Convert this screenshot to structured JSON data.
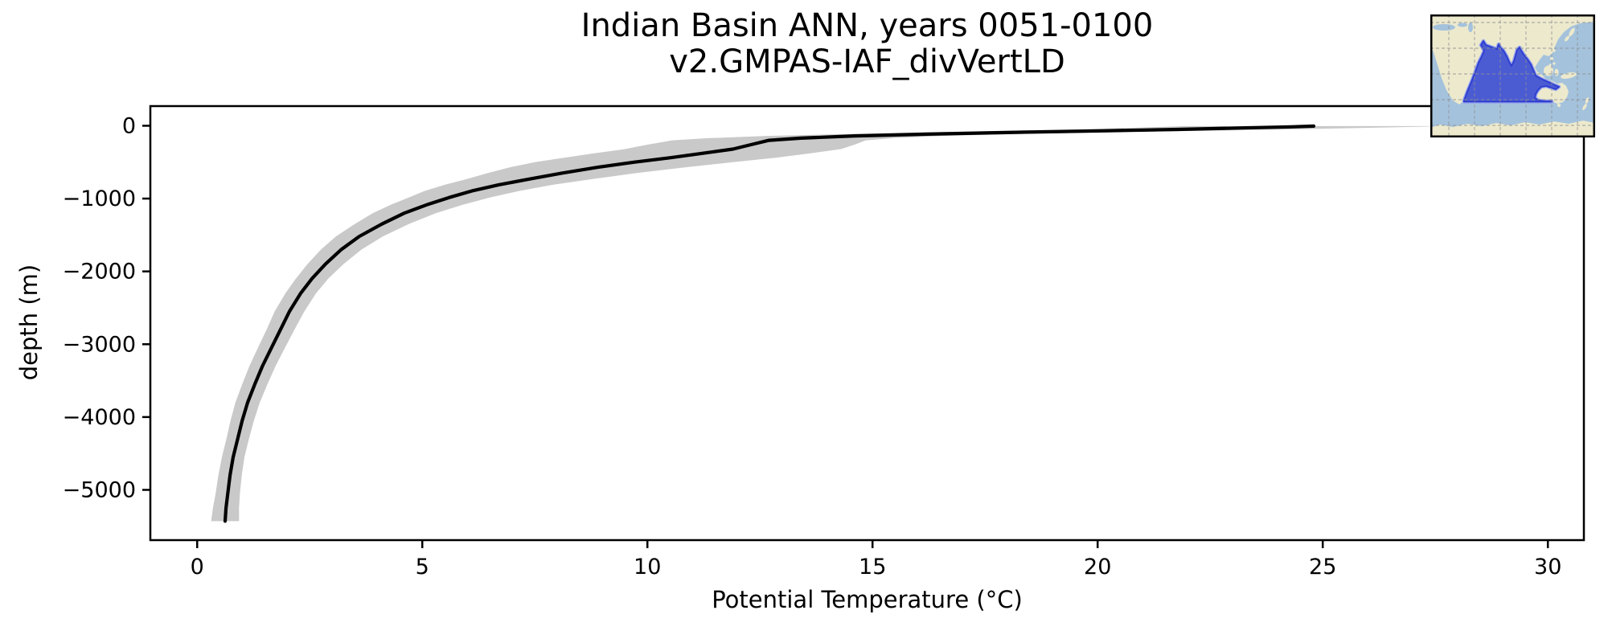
{
  "figure": {
    "background": "#ffffff",
    "frame_color": "#000000"
  },
  "chart_data": {
    "type": "line",
    "title": "Indian Basin ANN, years 0051-0100",
    "subtitle": "v2.GMPAS-IAF_divVertLD",
    "xlabel": "Potential Temperature (°C)",
    "ylabel": "depth (m)",
    "xlim": [
      -1.04,
      30.8
    ],
    "ylim": [
      -5690,
      270
    ],
    "x_ticks": [
      0,
      5,
      10,
      15,
      20,
      25,
      30
    ],
    "y_ticks": [
      0,
      -1000,
      -2000,
      -3000,
      -4000,
      -5000
    ],
    "grid": false,
    "legend": "none",
    "series": [
      {
        "name": "mean potential temperature profile",
        "type": "line",
        "color": "#000000",
        "line_width": 4.2,
        "points": [
          [
            24.8,
            -5
          ],
          [
            24.3,
            -15
          ],
          [
            23.2,
            -30
          ],
          [
            21.8,
            -50
          ],
          [
            20.1,
            -70
          ],
          [
            18.2,
            -90
          ],
          [
            16.2,
            -115
          ],
          [
            14.6,
            -140
          ],
          [
            13.4,
            -170
          ],
          [
            12.7,
            -200
          ],
          [
            12.3,
            -260
          ],
          [
            11.9,
            -320
          ],
          [
            11.2,
            -380
          ],
          [
            10.5,
            -440
          ],
          [
            9.7,
            -500
          ],
          [
            8.9,
            -570
          ],
          [
            8.1,
            -650
          ],
          [
            7.4,
            -730
          ],
          [
            6.7,
            -810
          ],
          [
            6.1,
            -895
          ],
          [
            5.6,
            -985
          ],
          [
            5.1,
            -1085
          ],
          [
            4.6,
            -1200
          ],
          [
            4.1,
            -1350
          ],
          [
            3.6,
            -1520
          ],
          [
            3.2,
            -1700
          ],
          [
            2.85,
            -1900
          ],
          [
            2.55,
            -2100
          ],
          [
            2.3,
            -2300
          ],
          [
            2.05,
            -2550
          ],
          [
            1.85,
            -2800
          ],
          [
            1.65,
            -3050
          ],
          [
            1.45,
            -3300
          ],
          [
            1.28,
            -3550
          ],
          [
            1.12,
            -3800
          ],
          [
            1.0,
            -4050
          ],
          [
            0.9,
            -4300
          ],
          [
            0.8,
            -4550
          ],
          [
            0.73,
            -4800
          ],
          [
            0.68,
            -5050
          ],
          [
            0.64,
            -5250
          ],
          [
            0.62,
            -5430
          ]
        ]
      }
    ],
    "band": {
      "name": "spatial standard deviation envelope",
      "color": "#c9c9c9",
      "sigma": [
        2.9,
        2.8,
        2.6,
        2.4,
        2.15,
        2.0,
        1.9,
        1.95,
        2.05,
        2.15,
        2.3,
        2.4,
        2.4,
        2.35,
        2.2,
        1.95,
        1.65,
        1.4,
        1.2,
        1.05,
        0.9,
        0.8,
        0.7,
        0.6,
        0.52,
        0.45,
        0.4,
        0.36,
        0.34,
        0.33,
        0.31,
        0.3,
        0.29,
        0.28,
        0.27,
        0.26,
        0.25,
        0.25,
        0.26,
        0.27,
        0.29,
        0.31
      ]
    }
  },
  "inset_map": {
    "name": "Indian Basin region locator map",
    "ocean_color": "#a4c2dc",
    "land_color": "#ece9cd",
    "basin_fill": "#4b5cd3",
    "basin_outline": "#2c3cd0",
    "basin_halo": "#96a3ec",
    "grid_color": "#8f8f8f",
    "border_color": "#000000"
  }
}
